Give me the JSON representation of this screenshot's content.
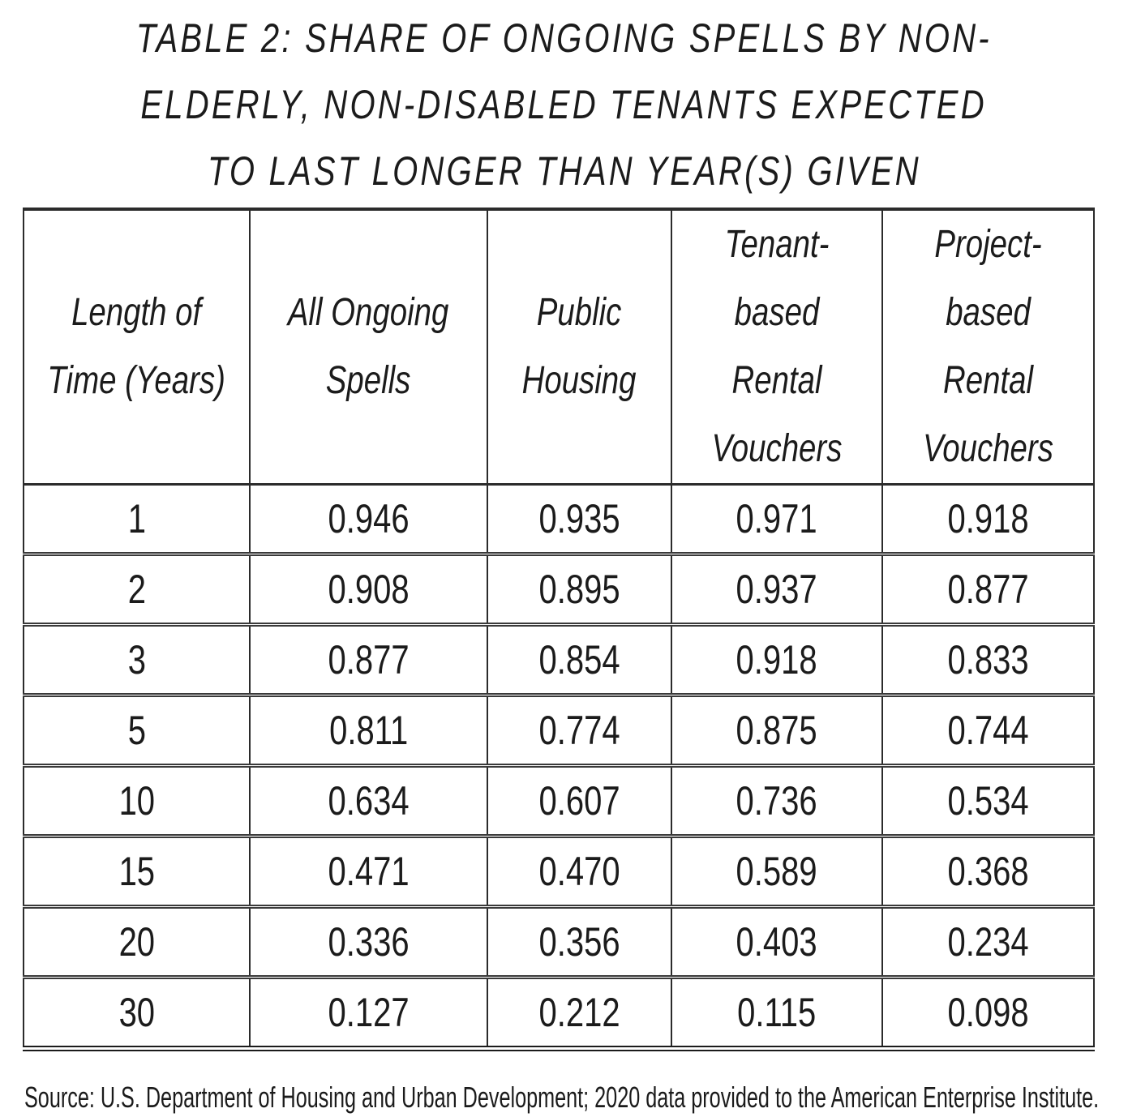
{
  "title": {
    "lines": [
      "TABLE 2: SHARE OF ONGOING SPELLS BY NON-",
      "ELDERLY, NON-DISABLED TENANTS EXPECTED",
      "TO LAST LONGER THAN YEAR(S) GIVEN"
    ]
  },
  "table": {
    "columns": [
      "Length of\nTime (Years)",
      "All Ongoing\nSpells",
      "Public\nHousing",
      "Tenant-\nbased Rental\nVouchers",
      "Project-\nbased Rental\nVouchers"
    ],
    "rows": [
      {
        "years": "1",
        "values": [
          "0.946",
          "0.935",
          "0.971",
          "0.918"
        ]
      },
      {
        "years": "2",
        "values": [
          "0.908",
          "0.895",
          "0.937",
          "0.877"
        ]
      },
      {
        "years": "3",
        "values": [
          "0.877",
          "0.854",
          "0.918",
          "0.833"
        ]
      },
      {
        "years": "5",
        "values": [
          "0.811",
          "0.774",
          "0.875",
          "0.744"
        ]
      },
      {
        "years": "10",
        "values": [
          "0.634",
          "0.607",
          "0.736",
          "0.534"
        ]
      },
      {
        "years": "15",
        "values": [
          "0.471",
          "0.470",
          "0.589",
          "0.368"
        ]
      },
      {
        "years": "20",
        "values": [
          "0.336",
          "0.356",
          "0.403",
          "0.234"
        ]
      },
      {
        "years": "30",
        "values": [
          "0.127",
          "0.212",
          "0.115",
          "0.098"
        ]
      }
    ]
  },
  "source": "Source: U.S. Department of Housing and Urban Development; 2020 data provided to the American Enterprise Institute."
}
